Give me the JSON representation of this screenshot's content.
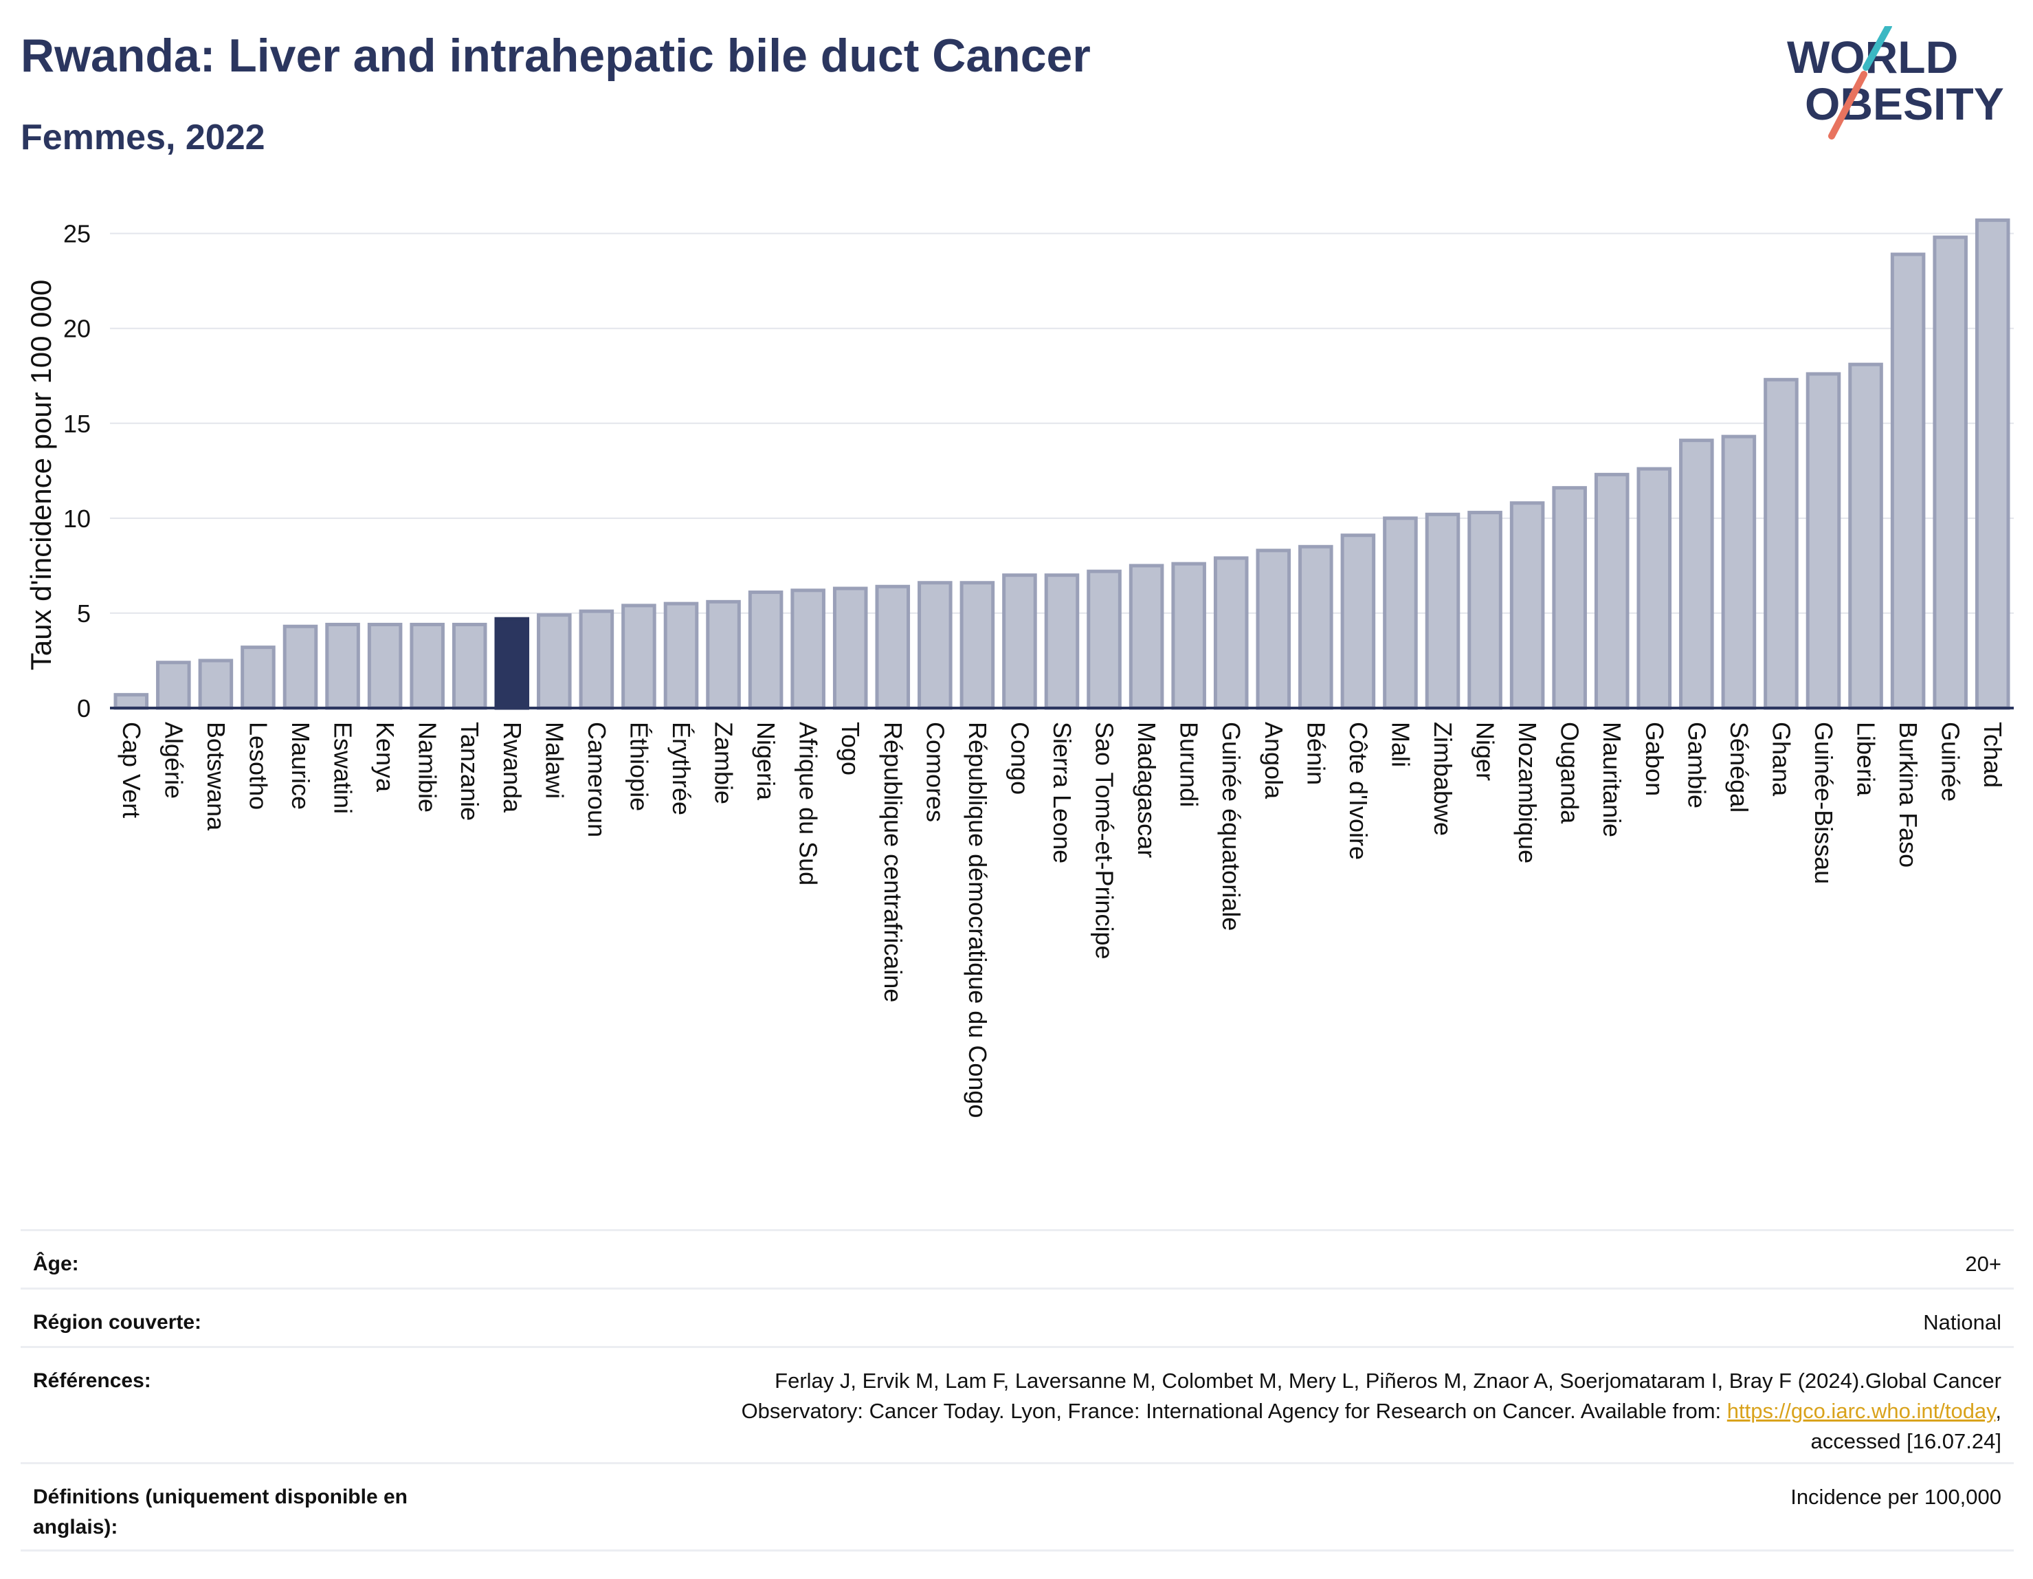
{
  "header": {
    "title": "Rwanda: Liver and intrahepatic bile duct Cancer",
    "subtitle": "Femmes, 2022"
  },
  "logo": {
    "line1": "WORLD",
    "line2": "OBESITY",
    "colors": {
      "text": "#2b365f",
      "slash_teal": "#3bb8c3",
      "slash_coral": "#e8735f"
    }
  },
  "colors": {
    "bar_fill": "#bcc1d0",
    "bar_stroke": "#9aa0b8",
    "highlight_fill": "#2b365f",
    "axis": "#2b365f",
    "grid": "#e3e5ec",
    "text": "#111111"
  },
  "chart_data": {
    "type": "bar",
    "title": "Rwanda: Liver and intrahepatic bile duct Cancer",
    "subtitle": "Femmes, 2022",
    "xlabel": "",
    "ylabel": "Taux d'incidence pour 100 000",
    "ylim": [
      0,
      26
    ],
    "yticks": [
      0,
      5,
      10,
      15,
      20,
      25
    ],
    "grid": true,
    "highlight": "Rwanda",
    "categories": [
      "Cap Vert",
      "Algérie",
      "Botswana",
      "Lesotho",
      "Maurice",
      "Eswatini",
      "Kenya",
      "Namibie",
      "Tanzanie",
      "Rwanda",
      "Malawi",
      "Cameroun",
      "Éthiopie",
      "Érythrée",
      "Zambie",
      "Nigeria",
      "Afrique du Sud",
      "Togo",
      "République centrafricaine",
      "Comores",
      "République démocratique du Congo",
      "Congo",
      "Sierra Leone",
      "Sao Tomé-et-Principe",
      "Madagascar",
      "Burundi",
      "Guinée équatoriale",
      "Angola",
      "Bénin",
      "Côte d'Ivoire",
      "Mali",
      "Zimbabwe",
      "Niger",
      "Mozambique",
      "Ouganda",
      "Mauritanie",
      "Gabon",
      "Gambie",
      "Sénégal",
      "Ghana",
      "Guinée-Bissau",
      "Liberia",
      "Burkina Faso",
      "Guinée",
      "Tchad"
    ],
    "values": [
      0.7,
      2.4,
      2.5,
      3.2,
      4.3,
      4.4,
      4.4,
      4.4,
      4.4,
      4.7,
      4.9,
      5.1,
      5.4,
      5.5,
      5.6,
      6.1,
      6.2,
      6.3,
      6.4,
      6.6,
      6.6,
      7.0,
      7.0,
      7.2,
      7.5,
      7.6,
      7.9,
      8.3,
      8.5,
      9.1,
      10.0,
      10.2,
      10.3,
      10.8,
      11.6,
      12.3,
      12.6,
      14.1,
      14.3,
      17.3,
      17.6,
      18.1,
      23.9,
      24.8,
      25.7
    ]
  },
  "meta": [
    {
      "label": "Âge:",
      "value": "20+"
    },
    {
      "label": "Région couverte:",
      "value": "National"
    },
    {
      "label": "Références:",
      "value_line1": "Ferlay J, Ervik M, Lam F, Laversanne M, Colombet M, Mery L, Piñeros M, Znaor A, Soerjomataram I, Bray F (2024).Global Cancer",
      "value_line2_prefix": "Observatory: Cancer Today. Lyon, France: International Agency for Research on Cancer. Available from: ",
      "link": "https://gco.iarc.who.int/today",
      "value_line2_suffix": ",",
      "value_line3": "accessed [16.07.24]"
    },
    {
      "label_line1": "Définitions (uniquement disponible en",
      "label_line2": "anglais):",
      "value": "Incidence per 100,000"
    }
  ]
}
